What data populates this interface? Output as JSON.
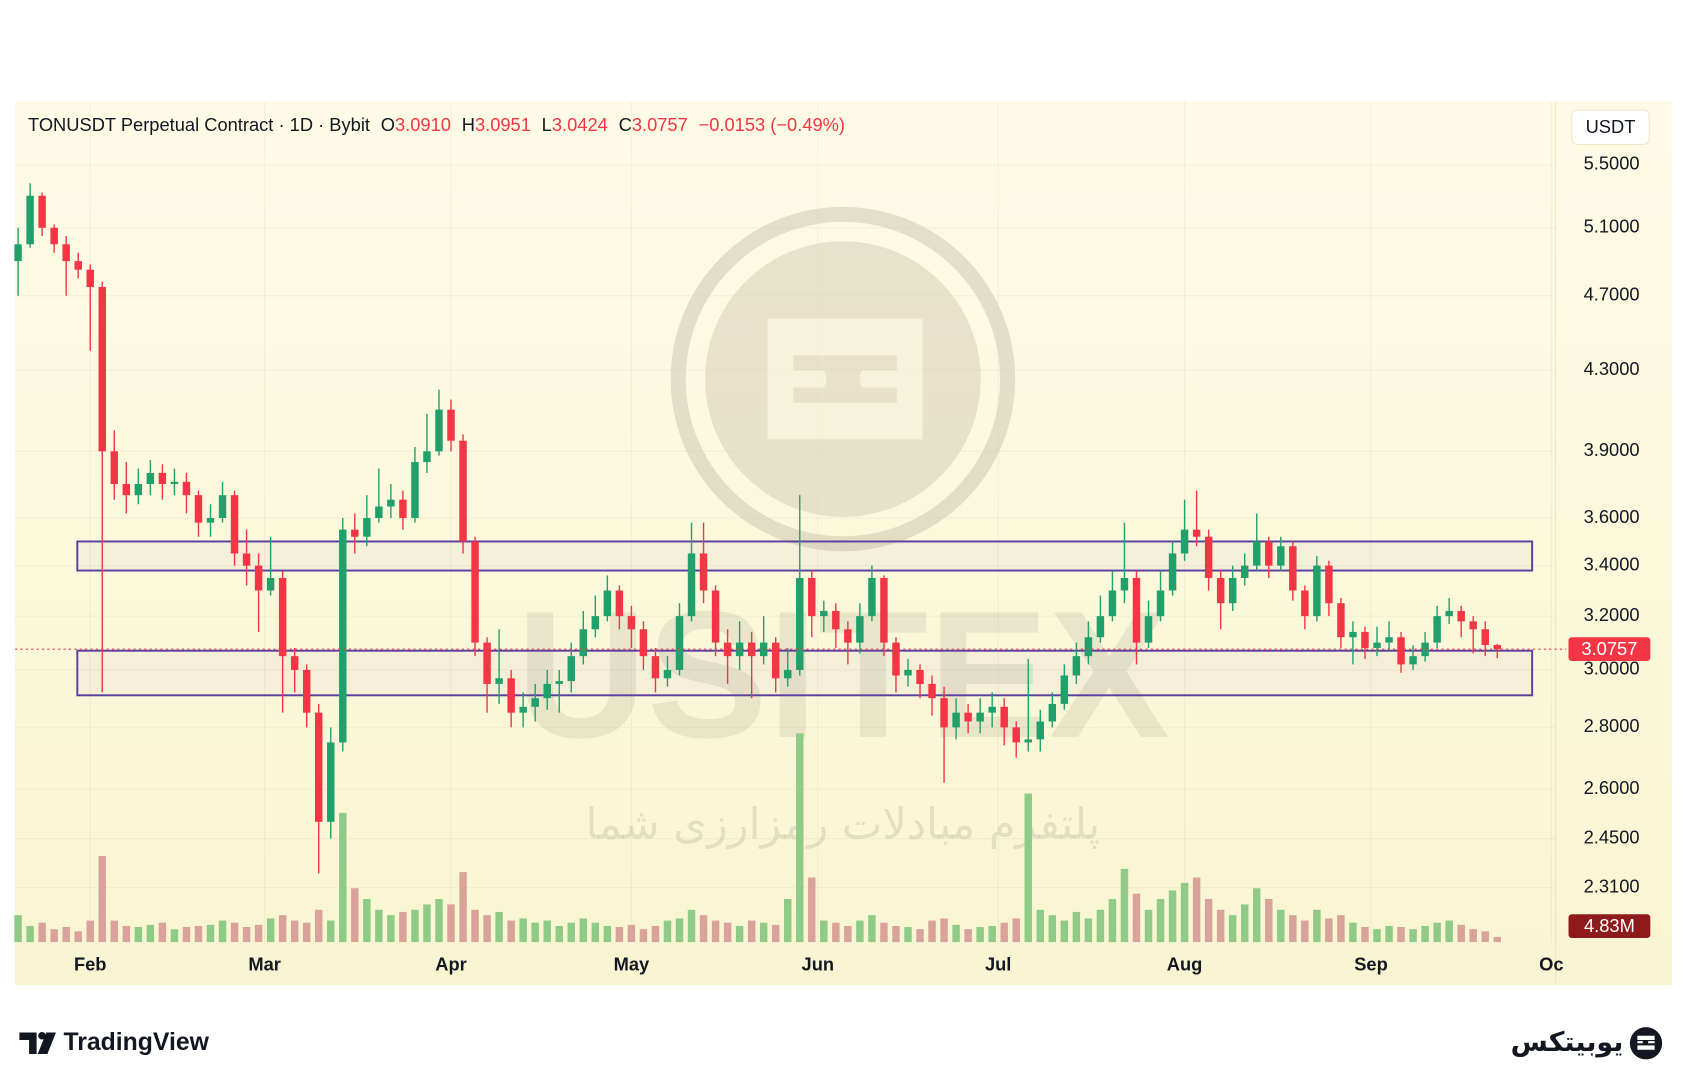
{
  "chart_data": {
    "type": "candlestick",
    "header": {
      "symbol": "TONUSDT Perpetual Contract · 1D · Bybit",
      "fields": [
        {
          "label": "O",
          "value": "3.0910"
        },
        {
          "label": "H",
          "value": "3.0951"
        },
        {
          "label": "L",
          "value": "3.0424"
        },
        {
          "label": "C",
          "value": "3.0757"
        }
      ],
      "change": "−0.0153 (−0.49%)"
    },
    "currency": "USDT",
    "y_scale": "log",
    "ylim": [
      2.164,
      5.936
    ],
    "yticks": [
      {
        "value": 5.5,
        "label": "5.5000"
      },
      {
        "value": 5.1,
        "label": "5.1000"
      },
      {
        "value": 4.7,
        "label": "4.7000"
      },
      {
        "value": 4.3,
        "label": "4.3000"
      },
      {
        "value": 3.9,
        "label": "3.9000"
      },
      {
        "value": 3.6,
        "label": "3.6000"
      },
      {
        "value": 3.4,
        "label": "3.4000"
      },
      {
        "value": 3.2,
        "label": "3.2000"
      },
      {
        "value": 3.0,
        "label": "3.0000"
      },
      {
        "value": 2.8,
        "label": "2.8000"
      },
      {
        "value": 2.6,
        "label": "2.6000"
      },
      {
        "value": 2.45,
        "label": "2.4500"
      },
      {
        "value": 2.31,
        "label": "2.3100"
      }
    ],
    "xlim": [
      -0.5,
      255.7
    ],
    "xticks": [
      {
        "value": 12,
        "label": "Feb"
      },
      {
        "value": 41,
        "label": "Mar"
      },
      {
        "value": 72,
        "label": "Apr"
      },
      {
        "value": 102,
        "label": "May"
      },
      {
        "value": 133,
        "label": "Jun"
      },
      {
        "value": 163,
        "label": "Jul"
      },
      {
        "value": 194,
        "label": "Aug"
      },
      {
        "value": 225,
        "label": "Sep"
      },
      {
        "value": 255,
        "label": "Oc"
      }
    ],
    "grid": true,
    "up_color": "#22a06b",
    "down_color": "#f23645",
    "volume_up_color": "#8fcb86",
    "volume_down_color": "#d9a39b",
    "zone_color": "#5b3fa0",
    "x": [
      0,
      2,
      4,
      6,
      8,
      10,
      12,
      14,
      16,
      18,
      20,
      22,
      24,
      26,
      28,
      30,
      32,
      34,
      36,
      38,
      40,
      42,
      44,
      46,
      48,
      50,
      52,
      54,
      56,
      58,
      60,
      62,
      64,
      66,
      68,
      70,
      72,
      74,
      76,
      78,
      80,
      82,
      84,
      86,
      88,
      90,
      92,
      94,
      96,
      98,
      100,
      102,
      104,
      106,
      108,
      110,
      112,
      114,
      116,
      118,
      120,
      122,
      124,
      126,
      128,
      130,
      132,
      134,
      136,
      138,
      140,
      142,
      144,
      146,
      148,
      150,
      152,
      154,
      156,
      158,
      160,
      162,
      164,
      166,
      168,
      170,
      172,
      174,
      176,
      178,
      180,
      182,
      184,
      186,
      188,
      190,
      192,
      194,
      196,
      198,
      200,
      202,
      204,
      206,
      208,
      210,
      212,
      214,
      216,
      218,
      220,
      222,
      224,
      226,
      228,
      230,
      232,
      234,
      236,
      238,
      240,
      242,
      244,
      246
    ],
    "open": [
      4.9,
      5.0,
      5.3,
      5.1,
      5.0,
      4.9,
      4.85,
      4.75,
      3.9,
      3.75,
      3.7,
      3.75,
      3.8,
      3.75,
      3.76,
      3.7,
      3.58,
      3.6,
      3.7,
      3.45,
      3.4,
      3.3,
      3.35,
      3.05,
      3.0,
      2.85,
      2.5,
      2.75,
      3.55,
      3.52,
      3.6,
      3.65,
      3.68,
      3.6,
      3.85,
      3.9,
      4.1,
      3.95,
      3.5,
      3.1,
      2.95,
      2.97,
      2.85,
      2.87,
      2.9,
      2.95,
      2.96,
      3.05,
      3.15,
      3.2,
      3.3,
      3.2,
      3.15,
      3.05,
      2.97,
      3.0,
      3.2,
      3.45,
      3.3,
      3.1,
      3.05,
      3.1,
      3.05,
      3.1,
      2.97,
      3.0,
      3.35,
      3.2,
      3.22,
      3.15,
      3.1,
      3.2,
      3.35,
      3.1,
      2.98,
      3.0,
      2.95,
      2.9,
      2.8,
      2.85,
      2.82,
      2.85,
      2.87,
      2.8,
      2.75,
      2.76,
      2.82,
      2.88,
      2.98,
      3.05,
      3.12,
      3.2,
      3.3,
      3.35,
      3.1,
      3.2,
      3.3,
      3.45,
      3.55,
      3.52,
      3.35,
      3.25,
      3.35,
      3.4,
      3.5,
      3.4,
      3.48,
      3.3,
      3.2,
      3.4,
      3.25,
      3.12,
      3.14,
      3.08,
      3.1,
      3.12,
      3.02,
      3.05,
      3.1,
      3.2,
      3.22,
      3.18,
      3.15,
      3.091
    ],
    "high": [
      5.1,
      5.38,
      5.32,
      5.12,
      5.05,
      4.95,
      4.88,
      4.78,
      4.0,
      3.85,
      3.82,
      3.86,
      3.84,
      3.82,
      3.8,
      3.72,
      3.66,
      3.76,
      3.72,
      3.55,
      3.45,
      3.52,
      3.38,
      3.08,
      3.02,
      2.88,
      2.8,
      3.6,
      3.62,
      3.7,
      3.82,
      3.75,
      3.72,
      3.92,
      4.08,
      4.2,
      4.15,
      3.98,
      3.52,
      3.12,
      3.15,
      3.0,
      2.92,
      2.95,
      3.0,
      3.0,
      3.1,
      3.22,
      3.28,
      3.36,
      3.32,
      3.24,
      3.18,
      3.08,
      3.05,
      3.25,
      3.58,
      3.58,
      3.32,
      3.15,
      3.18,
      3.14,
      3.2,
      3.12,
      3.08,
      3.7,
      3.38,
      3.26,
      3.25,
      3.18,
      3.25,
      3.4,
      3.36,
      3.12,
      3.04,
      3.02,
      2.98,
      2.94,
      2.9,
      2.88,
      2.9,
      2.92,
      2.9,
      2.82,
      3.04,
      2.86,
      2.92,
      3.02,
      3.1,
      3.18,
      3.28,
      3.38,
      3.58,
      3.38,
      3.26,
      3.38,
      3.5,
      3.68,
      3.72,
      3.55,
      3.38,
      3.4,
      3.45,
      3.62,
      3.52,
      3.52,
      3.5,
      3.32,
      3.44,
      3.42,
      3.27,
      3.18,
      3.16,
      3.16,
      3.18,
      3.14,
      3.09,
      3.14,
      3.24,
      3.27,
      3.24,
      3.2,
      3.18,
      3.0951
    ],
    "low": [
      4.7,
      4.98,
      5.05,
      4.95,
      4.7,
      4.8,
      4.4,
      2.92,
      3.68,
      3.62,
      3.66,
      3.7,
      3.68,
      3.7,
      3.62,
      3.52,
      3.52,
      3.58,
      3.4,
      3.32,
      3.14,
      3.28,
      2.85,
      2.92,
      2.8,
      2.35,
      2.45,
      2.72,
      3.45,
      3.48,
      3.58,
      3.6,
      3.55,
      3.58,
      3.8,
      3.88,
      3.9,
      3.45,
      3.05,
      2.85,
      2.88,
      2.8,
      2.8,
      2.82,
      2.86,
      2.85,
      2.92,
      3.02,
      3.12,
      3.18,
      3.15,
      3.08,
      3.0,
      2.92,
      2.94,
      2.98,
      3.18,
      3.25,
      3.05,
      2.95,
      3.0,
      2.9,
      3.02,
      2.92,
      2.94,
      2.98,
      3.12,
      3.14,
      3.08,
      3.02,
      3.06,
      3.18,
      3.05,
      2.92,
      2.94,
      2.9,
      2.84,
      2.62,
      2.76,
      2.78,
      2.78,
      2.8,
      2.74,
      2.7,
      2.72,
      2.72,
      2.8,
      2.86,
      2.95,
      3.02,
      3.1,
      3.18,
      3.25,
      3.02,
      3.08,
      3.18,
      3.28,
      3.42,
      3.48,
      3.3,
      3.15,
      3.22,
      3.32,
      3.38,
      3.35,
      3.38,
      3.26,
      3.15,
      3.18,
      3.2,
      3.08,
      3.02,
      3.04,
      3.05,
      3.07,
      2.99,
      3.0,
      3.03,
      3.08,
      3.17,
      3.12,
      3.06,
      3.05,
      3.0424
    ],
    "close": [
      5.0,
      5.3,
      5.1,
      5.0,
      4.9,
      4.85,
      4.75,
      3.9,
      3.75,
      3.7,
      3.75,
      3.8,
      3.75,
      3.76,
      3.7,
      3.58,
      3.6,
      3.7,
      3.45,
      3.4,
      3.3,
      3.35,
      3.05,
      3.0,
      2.85,
      2.5,
      2.75,
      3.55,
      3.52,
      3.6,
      3.65,
      3.68,
      3.6,
      3.85,
      3.9,
      4.1,
      3.95,
      3.5,
      3.1,
      2.95,
      2.97,
      2.85,
      2.87,
      2.9,
      2.95,
      2.96,
      3.05,
      3.15,
      3.2,
      3.3,
      3.2,
      3.15,
      3.05,
      2.97,
      3.0,
      3.2,
      3.45,
      3.3,
      3.1,
      3.05,
      3.1,
      3.05,
      3.1,
      2.97,
      3.0,
      3.35,
      3.2,
      3.22,
      3.15,
      3.1,
      3.2,
      3.35,
      3.1,
      2.98,
      3.0,
      2.95,
      2.9,
      2.8,
      2.85,
      2.82,
      2.85,
      2.87,
      2.8,
      2.75,
      2.76,
      2.82,
      2.88,
      2.98,
      3.05,
      3.12,
      3.2,
      3.3,
      3.35,
      3.1,
      3.2,
      3.3,
      3.45,
      3.55,
      3.52,
      3.35,
      3.25,
      3.35,
      3.4,
      3.5,
      3.4,
      3.48,
      3.3,
      3.2,
      3.4,
      3.25,
      3.12,
      3.14,
      3.08,
      3.1,
      3.12,
      3.02,
      3.05,
      3.1,
      3.2,
      3.22,
      3.18,
      3.15,
      3.091,
      3.0757
    ],
    "volume_ylim": [
      0,
      200000000
    ],
    "volume": [
      25000000,
      15000000,
      18000000,
      12000000,
      14000000,
      10000000,
      20000000,
      80000000,
      20000000,
      15000000,
      14000000,
      16000000,
      18000000,
      12000000,
      14000000,
      15000000,
      16000000,
      20000000,
      18000000,
      14000000,
      16000000,
      22000000,
      25000000,
      20000000,
      18000000,
      30000000,
      20000000,
      120000000,
      50000000,
      40000000,
      30000000,
      25000000,
      28000000,
      30000000,
      35000000,
      40000000,
      35000000,
      65000000,
      30000000,
      25000000,
      28000000,
      20000000,
      22000000,
      18000000,
      20000000,
      15000000,
      18000000,
      22000000,
      18000000,
      15000000,
      14000000,
      16000000,
      12000000,
      15000000,
      20000000,
      22000000,
      30000000,
      25000000,
      20000000,
      18000000,
      15000000,
      20000000,
      18000000,
      16000000,
      40000000,
      194000000,
      60000000,
      20000000,
      18000000,
      15000000,
      20000000,
      25000000,
      18000000,
      15000000,
      14000000,
      12000000,
      20000000,
      22000000,
      16000000,
      12000000,
      14000000,
      15000000,
      18000000,
      22000000,
      138000000,
      30000000,
      25000000,
      20000000,
      28000000,
      22000000,
      30000000,
      40000000,
      68000000,
      45000000,
      30000000,
      40000000,
      48000000,
      55000000,
      60000000,
      40000000,
      30000000,
      25000000,
      35000000,
      50000000,
      40000000,
      30000000,
      25000000,
      20000000,
      30000000,
      22000000,
      25000000,
      18000000,
      14000000,
      12000000,
      15000000,
      14000000,
      12000000,
      15000000,
      18000000,
      20000000,
      16000000,
      12000000,
      10000000,
      4830000
    ],
    "last_price_label": "3.0757",
    "last_volume_label": "4.83M",
    "zones": [
      {
        "xlim": [
          9.85,
          251.8
        ],
        "ylim": [
          3.38,
          3.5
        ]
      },
      {
        "xlim": [
          9.85,
          251.8
        ],
        "ylim": [
          2.91,
          3.07
        ]
      }
    ]
  },
  "watermark": {
    "brand": "USITEX",
    "tagline": "پلتفرم مبادلات رمزارزی شما"
  },
  "footer": {
    "left": "TradingView",
    "right": "یوبیتکس"
  }
}
